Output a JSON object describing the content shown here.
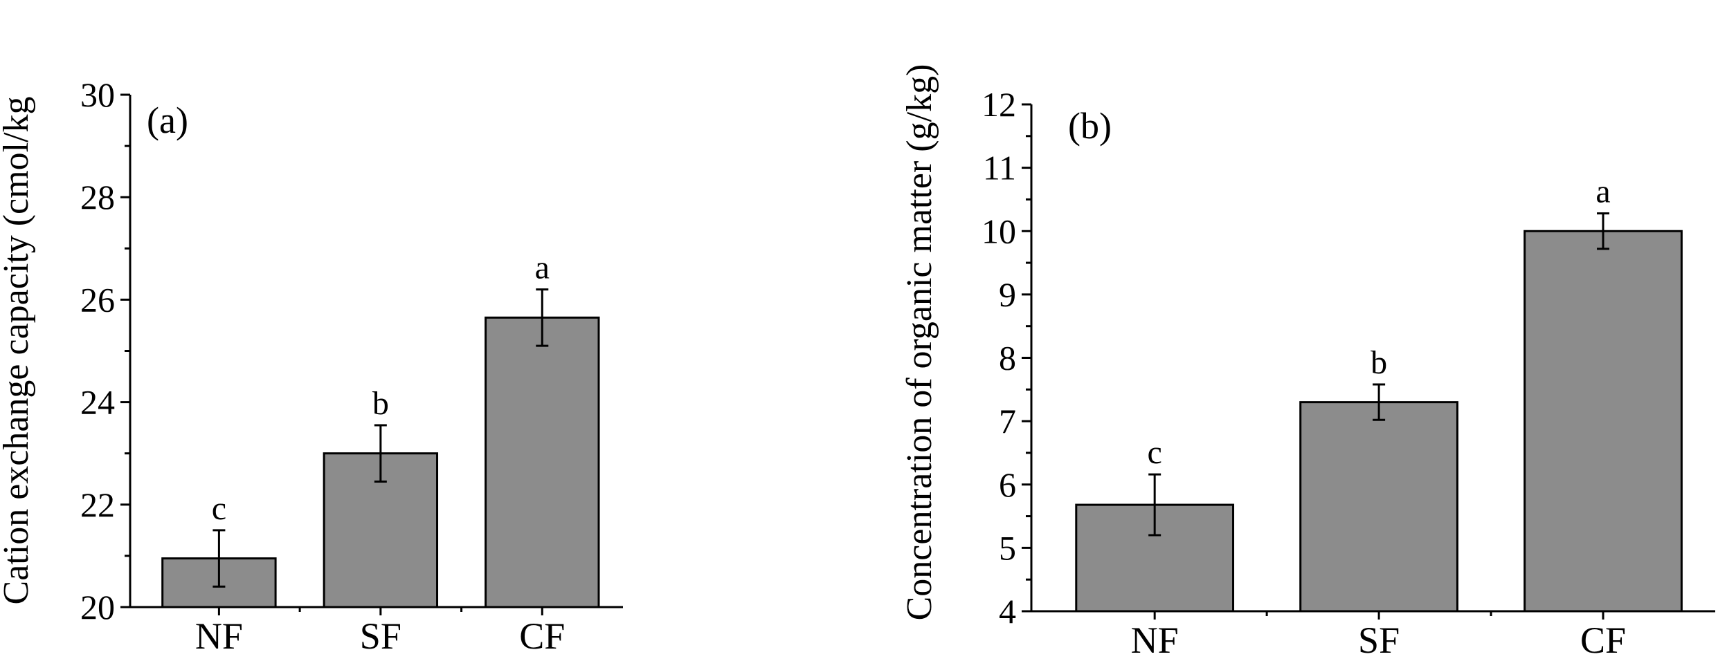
{
  "chart_data": [
    {
      "panel_label": "(a)",
      "type": "bar",
      "categories": [
        "NF",
        "SF",
        "CF"
      ],
      "values": [
        20.95,
        23.0,
        25.65
      ],
      "errors": [
        0.55,
        0.55,
        0.55
      ],
      "significance": [
        "c",
        "b",
        "a"
      ],
      "ylabel": "Cation exchange capacity (cmol/kg",
      "xlabel": "",
      "ylim": [
        20,
        30
      ],
      "yticks": [
        "20",
        "22",
        "24",
        "26",
        "28",
        "30"
      ],
      "bar_color": "#8c8c8c"
    },
    {
      "panel_label": "(b)",
      "type": "bar",
      "categories": [
        "NF",
        "SF",
        "CF"
      ],
      "values": [
        5.68,
        7.3,
        10.0
      ],
      "errors": [
        0.48,
        0.28,
        0.28
      ],
      "significance": [
        "c",
        "b",
        "a"
      ],
      "ylabel": "Concentration of organic matter (g/kg)",
      "xlabel": "",
      "ylim": [
        4,
        12
      ],
      "yticks": [
        "4",
        "5",
        "6",
        "7",
        "8",
        "9",
        "10",
        "11",
        "12"
      ],
      "bar_color": "#8c8c8c"
    }
  ]
}
